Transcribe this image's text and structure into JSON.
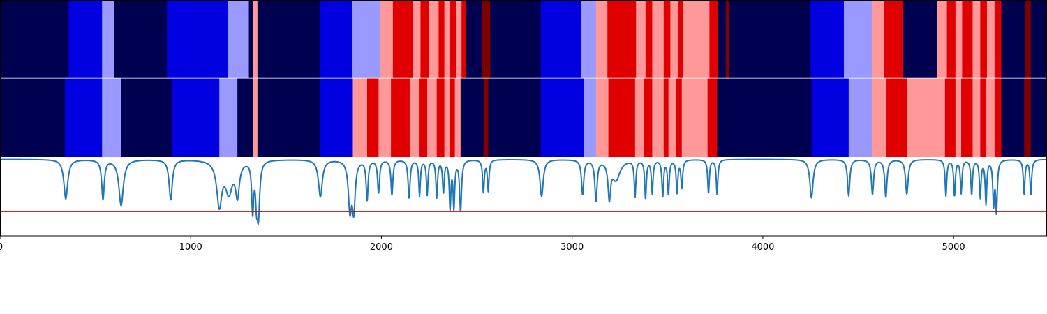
{
  "chart_data": [
    {
      "type": "heatmap",
      "title": "",
      "xlabel": "",
      "ylabel": "",
      "xlim": [
        0,
        5490
      ],
      "grid": false,
      "colors": {
        "0": "#000050",
        "1": "#0000e0",
        "2": "#9999ff",
        "3": "#ff9999",
        "4": "#e00000",
        "5": "#7f0000"
      },
      "segments": [
        [
          0,
          360,
          0
        ],
        [
          360,
          535,
          1
        ],
        [
          535,
          600,
          2
        ],
        [
          600,
          875,
          0
        ],
        [
          875,
          1195,
          1
        ],
        [
          1195,
          1305,
          2
        ],
        [
          1305,
          1325,
          0
        ],
        [
          1325,
          1350,
          3
        ],
        [
          1350,
          1680,
          0
        ],
        [
          1680,
          1845,
          1
        ],
        [
          1845,
          1995,
          2
        ],
        [
          1995,
          2060,
          3
        ],
        [
          2060,
          2165,
          4
        ],
        [
          2165,
          2205,
          3
        ],
        [
          2205,
          2250,
          4
        ],
        [
          2250,
          2300,
          3
        ],
        [
          2300,
          2330,
          4
        ],
        [
          2330,
          2360,
          3
        ],
        [
          2360,
          2390,
          4
        ],
        [
          2390,
          2420,
          3
        ],
        [
          2420,
          2445,
          4
        ],
        [
          2445,
          2525,
          0
        ],
        [
          2525,
          2570,
          5
        ],
        [
          2570,
          2835,
          0
        ],
        [
          2835,
          3045,
          1
        ],
        [
          3045,
          3125,
          2
        ],
        [
          3125,
          3185,
          3
        ],
        [
          3185,
          3335,
          4
        ],
        [
          3335,
          3385,
          3
        ],
        [
          3385,
          3420,
          4
        ],
        [
          3420,
          3480,
          3
        ],
        [
          3480,
          3515,
          4
        ],
        [
          3515,
          3555,
          3
        ],
        [
          3555,
          3580,
          4
        ],
        [
          3580,
          3720,
          3
        ],
        [
          3720,
          3765,
          4
        ],
        [
          3765,
          3805,
          0
        ],
        [
          3805,
          3825,
          5
        ],
        [
          3825,
          4250,
          0
        ],
        [
          4250,
          4425,
          1
        ],
        [
          4425,
          4575,
          2
        ],
        [
          4575,
          4635,
          3
        ],
        [
          4635,
          4735,
          4
        ],
        [
          4735,
          4915,
          0
        ],
        [
          4915,
          4965,
          3
        ],
        [
          4965,
          5010,
          4
        ],
        [
          5010,
          5045,
          3
        ],
        [
          5045,
          5100,
          4
        ],
        [
          5100,
          5140,
          3
        ],
        [
          5140,
          5175,
          4
        ],
        [
          5175,
          5215,
          3
        ],
        [
          5215,
          5250,
          4
        ],
        [
          5250,
          5375,
          0
        ],
        [
          5375,
          5405,
          5
        ],
        [
          5405,
          5490,
          0
        ]
      ]
    },
    {
      "type": "heatmap",
      "title": "",
      "xlabel": "",
      "ylabel": "",
      "xlim": [
        0,
        5490
      ],
      "grid": false,
      "segments": [
        [
          0,
          340,
          0
        ],
        [
          340,
          535,
          1
        ],
        [
          535,
          635,
          2
        ],
        [
          635,
          900,
          0
        ],
        [
          900,
          1150,
          1
        ],
        [
          1150,
          1245,
          2
        ],
        [
          1245,
          1325,
          0
        ],
        [
          1325,
          1350,
          3
        ],
        [
          1350,
          1680,
          0
        ],
        [
          1680,
          1850,
          1
        ],
        [
          1850,
          1925,
          3
        ],
        [
          1925,
          1985,
          4
        ],
        [
          1985,
          2050,
          3
        ],
        [
          2050,
          2150,
          4
        ],
        [
          2150,
          2200,
          3
        ],
        [
          2200,
          2240,
          4
        ],
        [
          2240,
          2290,
          3
        ],
        [
          2290,
          2330,
          4
        ],
        [
          2330,
          2360,
          3
        ],
        [
          2360,
          2385,
          4
        ],
        [
          2385,
          2415,
          3
        ],
        [
          2415,
          2535,
          0
        ],
        [
          2535,
          2560,
          5
        ],
        [
          2560,
          2835,
          0
        ],
        [
          2835,
          3060,
          1
        ],
        [
          3060,
          3125,
          2
        ],
        [
          3125,
          3190,
          3
        ],
        [
          3190,
          3330,
          4
        ],
        [
          3330,
          3375,
          3
        ],
        [
          3375,
          3420,
          4
        ],
        [
          3420,
          3480,
          3
        ],
        [
          3480,
          3505,
          4
        ],
        [
          3505,
          3545,
          3
        ],
        [
          3545,
          3575,
          4
        ],
        [
          3575,
          3710,
          3
        ],
        [
          3710,
          3760,
          4
        ],
        [
          3760,
          4255,
          0
        ],
        [
          4255,
          4450,
          1
        ],
        [
          4450,
          4575,
          2
        ],
        [
          4575,
          4645,
          3
        ],
        [
          4645,
          4755,
          4
        ],
        [
          4755,
          4955,
          3
        ],
        [
          4955,
          5010,
          4
        ],
        [
          5010,
          5040,
          3
        ],
        [
          5040,
          5100,
          4
        ],
        [
          5100,
          5140,
          3
        ],
        [
          5140,
          5170,
          4
        ],
        [
          5170,
          5215,
          3
        ],
        [
          5215,
          5250,
          4
        ],
        [
          5250,
          5370,
          0
        ],
        [
          5370,
          5405,
          5
        ],
        [
          5405,
          5490,
          0
        ]
      ]
    },
    {
      "type": "line",
      "title": "",
      "xlabel": "",
      "ylabel": "",
      "xlim": [
        0,
        5490
      ],
      "ylim": [
        0,
        1
      ],
      "grid": false,
      "x_ticks": [
        0,
        1000,
        2000,
        3000,
        4000,
        5000
      ],
      "x_tick_labels": [
        "0",
        "1000",
        "2000",
        "3000",
        "4000",
        "5000"
      ],
      "series": [
        {
          "color": "#1f77b4",
          "baseline": 0.97,
          "dips": [
            [
              345,
              0.47,
              12
            ],
            [
              540,
              0.47,
              8
            ],
            [
              635,
              0.39,
              14
            ],
            [
              895,
              0.46,
              10
            ],
            [
              1150,
              0.41,
              16
            ],
            [
              1200,
              0.58,
              22
            ],
            [
              1245,
              0.55,
              12
            ],
            [
              1325,
              0.34,
              6
            ],
            [
              1345,
              0.56,
              6
            ],
            [
              1355,
              0.31,
              8
            ],
            [
              1680,
              0.5,
              12
            ],
            [
              1835,
              0.36,
              10
            ],
            [
              1855,
              0.37,
              9
            ],
            [
              1925,
              0.46,
              6
            ],
            [
              1985,
              0.55,
              6
            ],
            [
              2055,
              0.52,
              6
            ],
            [
              2145,
              0.48,
              6
            ],
            [
              2200,
              0.52,
              5
            ],
            [
              2240,
              0.53,
              5
            ],
            [
              2290,
              0.5,
              5
            ],
            [
              2325,
              0.56,
              5
            ],
            [
              2360,
              0.38,
              5
            ],
            [
              2380,
              0.38,
              5
            ],
            [
              2415,
              0.32,
              6
            ],
            [
              2535,
              0.55,
              5
            ],
            [
              2560,
              0.58,
              5
            ],
            [
              2840,
              0.5,
              10
            ],
            [
              3055,
              0.53,
              7
            ],
            [
              3125,
              0.45,
              7
            ],
            [
              3195,
              0.52,
              8
            ],
            [
              3230,
              0.72,
              25
            ],
            [
              3330,
              0.51,
              5
            ],
            [
              3385,
              0.48,
              5
            ],
            [
              3420,
              0.55,
              5
            ],
            [
              3475,
              0.51,
              5
            ],
            [
              3505,
              0.53,
              5
            ],
            [
              3550,
              0.56,
              5
            ],
            [
              3575,
              0.61,
              5
            ],
            [
              3715,
              0.54,
              5
            ],
            [
              3760,
              0.53,
              5
            ],
            [
              4255,
              0.48,
              10
            ],
            [
              4450,
              0.51,
              7
            ],
            [
              4575,
              0.53,
              7
            ],
            [
              4645,
              0.49,
              7
            ],
            [
              4755,
              0.53,
              8
            ],
            [
              4960,
              0.51,
              5
            ],
            [
              5005,
              0.51,
              5
            ],
            [
              5040,
              0.55,
              5
            ],
            [
              5095,
              0.53,
              5
            ],
            [
              5140,
              0.5,
              5
            ],
            [
              5170,
              0.42,
              5
            ],
            [
              5210,
              0.43,
              5
            ],
            [
              5225,
              0.32,
              5
            ],
            [
              5370,
              0.54,
              5
            ],
            [
              5405,
              0.52,
              5
            ]
          ]
        },
        {
          "color": "#e00000",
          "values": [
            0.31,
            0.31
          ]
        }
      ]
    }
  ]
}
